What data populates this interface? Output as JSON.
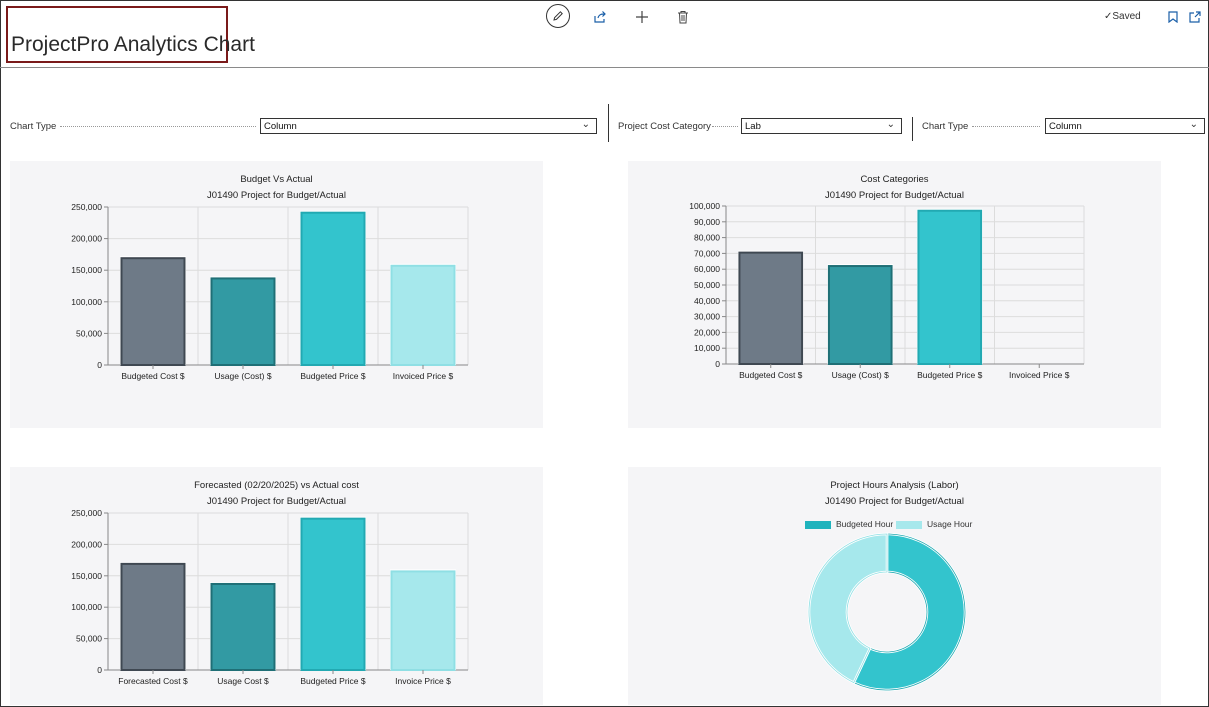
{
  "header": {
    "title": "ProjectPro Analytics Chart",
    "saved_label": "Saved",
    "icons": [
      "edit-icon",
      "share-icon",
      "add-icon",
      "delete-icon",
      "bookmark-icon",
      "open-in-new-icon"
    ]
  },
  "filters": {
    "chart_type_1_label": "Chart Type",
    "chart_type_1_value": "Column",
    "cost_category_label": "Project Cost Category",
    "cost_category_value": "Lab",
    "chart_type_2_label": "Chart Type",
    "chart_type_2_value": "Column"
  },
  "colors": {
    "gray": "#6e7a87",
    "teal_dark": "#329aa3",
    "teal": "#33c4cd",
    "teal_light": "#a6e8ec"
  },
  "chart_data": [
    {
      "type": "bar",
      "title": "Budget Vs Actual",
      "subtitle": "J01490 Project for Budget/Actual",
      "categories": [
        "Budgeted Cost $",
        "Usage (Cost) $",
        "Budgeted Price $",
        "Invoiced Price $"
      ],
      "values": [
        169000,
        137000,
        241000,
        157000
      ],
      "ylim": [
        0,
        250000
      ],
      "yticks": [
        "0",
        "50,000",
        "100,000",
        "150,000",
        "200,000",
        "250,000"
      ],
      "grid": true
    },
    {
      "type": "bar",
      "title": "Cost Categories",
      "subtitle": "J01490 Project for Budget/Actual",
      "categories": [
        "Budgeted Cost $",
        "Usage (Cost) $",
        "Budgeted Price $",
        "Invoiced Price $"
      ],
      "values": [
        70500,
        62000,
        97000,
        0
      ],
      "ylim": [
        0,
        100000
      ],
      "yticks": [
        "0",
        "10,000",
        "20,000",
        "30,000",
        "40,000",
        "50,000",
        "60,000",
        "70,000",
        "80,000",
        "90,000",
        "100,000"
      ],
      "grid": true
    },
    {
      "type": "bar",
      "title": "Forecasted (02/20/2025) vs Actual cost",
      "subtitle": "J01490 Project for Budget/Actual",
      "categories": [
        "Forecasted Cost $",
        "Usage Cost $",
        "Budgeted Price $",
        "Invoice Price $"
      ],
      "values": [
        169000,
        137000,
        241000,
        157000
      ],
      "ylim": [
        0,
        250000
      ],
      "yticks": [
        "0",
        "50,000",
        "100,000",
        "150,000",
        "200,000",
        "250,000"
      ],
      "grid": true
    },
    {
      "type": "pie",
      "title": "Project Hours Analysis (Labor)",
      "subtitle": "J01490 Project for Budget/Actual",
      "legend_position": "top",
      "series": [
        {
          "name": "Budgeted Hour",
          "value": 57
        },
        {
          "name": "Usage Hour",
          "value": 43
        }
      ]
    }
  ]
}
